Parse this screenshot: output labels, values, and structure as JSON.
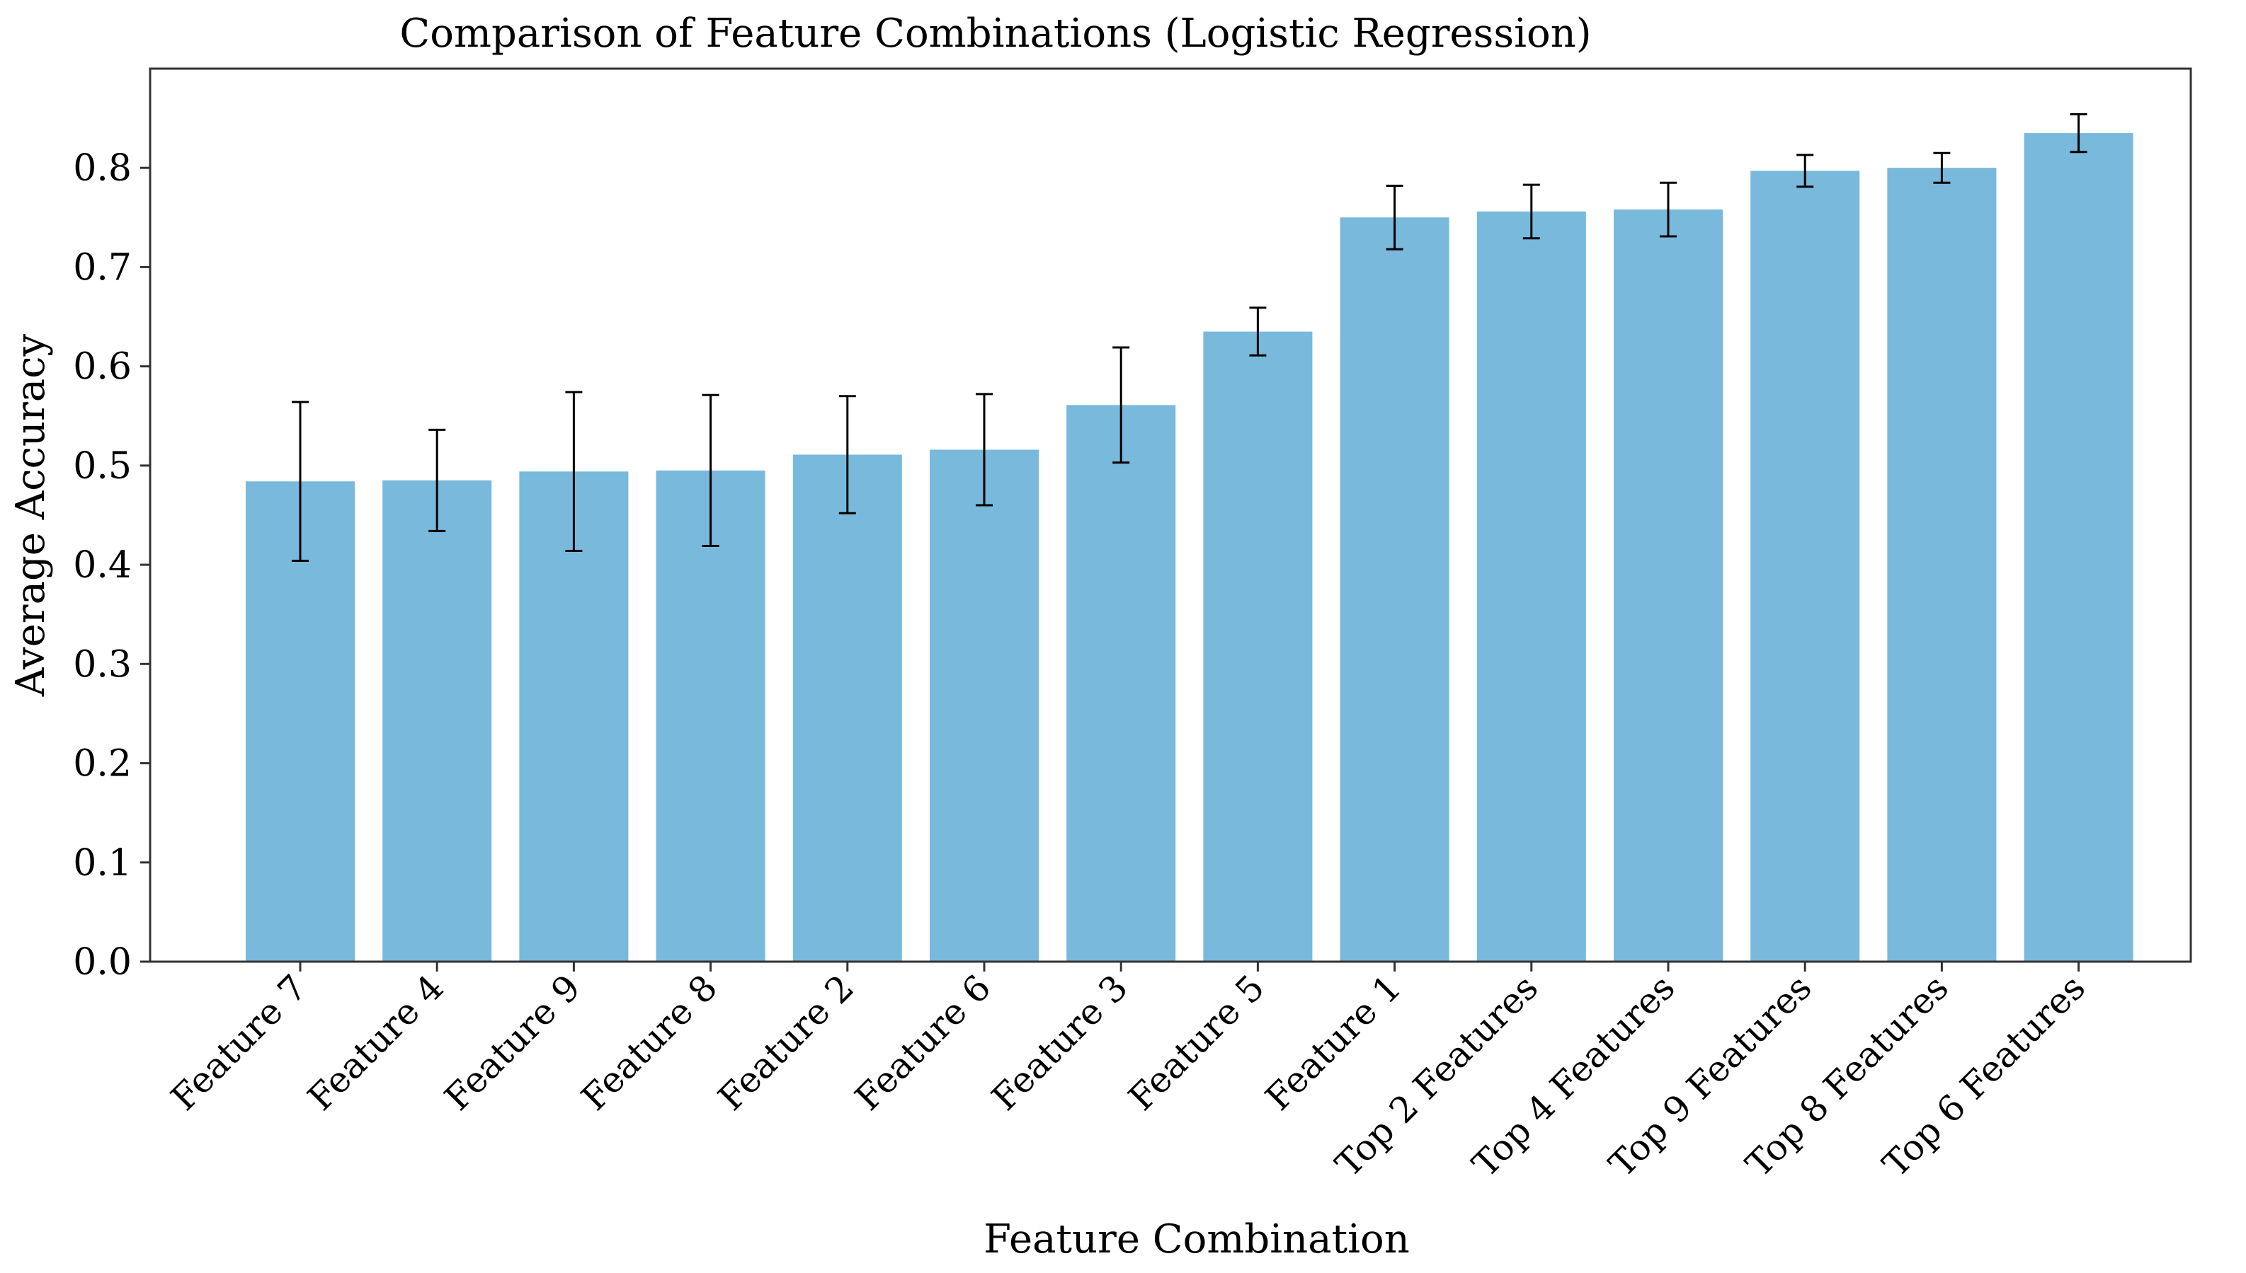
{
  "chart_data": {
    "type": "bar",
    "title": "Comparison of Feature Combinations (Logistic Regression)",
    "xlabel": "Feature Combination",
    "ylabel": "Average Accuracy",
    "ylim": [
      0,
      0.9
    ],
    "yticks": [
      0.0,
      0.1,
      0.2,
      0.3,
      0.4,
      0.5,
      0.6,
      0.7,
      0.8
    ],
    "ytick_labels": [
      "0.0",
      "0.1",
      "0.2",
      "0.3",
      "0.4",
      "0.5",
      "0.6",
      "0.7",
      "0.8"
    ],
    "grid": false,
    "bar_color": "#78B9DC",
    "errorbar_color": "#000000",
    "categories": [
      "Feature 7",
      "Feature 4",
      "Feature 9",
      "Feature 8",
      "Feature 2",
      "Feature 6",
      "Feature 3",
      "Feature 5",
      "Feature 1",
      "Top 2 Features",
      "Top 4 Features",
      "Top 9 Features",
      "Top 8 Features",
      "Top 6 Features"
    ],
    "values": [
      0.484,
      0.485,
      0.494,
      0.495,
      0.511,
      0.516,
      0.561,
      0.635,
      0.75,
      0.756,
      0.758,
      0.797,
      0.8,
      0.835
    ],
    "errors": [
      0.08,
      0.051,
      0.08,
      0.076,
      0.059,
      0.056,
      0.058,
      0.024,
      0.032,
      0.027,
      0.027,
      0.016,
      0.015,
      0.019
    ]
  }
}
